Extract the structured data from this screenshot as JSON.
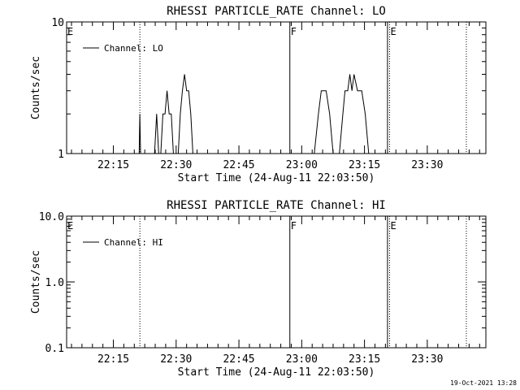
{
  "footer_timestamp": "19-Oct-2021 13:28",
  "chart_data": [
    {
      "type": "line",
      "title": "RHESSI PARTICLE_RATE Channel: LO",
      "xlabel": "Start Time (24-Aug-11 22:03:50)",
      "ylabel": "Counts/sec",
      "yscale": "log",
      "ylim": [
        1,
        10
      ],
      "ytick_labels": [
        "1",
        "10"
      ],
      "xlim": [
        "22:03:50",
        "23:44:00"
      ],
      "xtick_labels": [
        "22:15",
        "22:30",
        "22:45",
        "23:00",
        "23:15",
        "23:30"
      ],
      "legend": {
        "label": "Channel: LO",
        "placement": "top-left"
      },
      "grid": false,
      "markers": [
        {
          "label": "E",
          "time": "22:03:50",
          "style": "dotted"
        },
        {
          "label": "",
          "time": "22:21:20",
          "style": "dotted"
        },
        {
          "label": "F",
          "time": "22:57:10",
          "style": "solid"
        },
        {
          "label": "",
          "time": "23:20:30",
          "style": "solid"
        },
        {
          "label": "E",
          "time": "23:21:00",
          "style": "dotted"
        },
        {
          "label": "",
          "time": "23:39:20",
          "style": "dotted"
        }
      ],
      "series": [
        {
          "name": "Channel: LO",
          "points": [
            [
              "22:21:10",
              1
            ],
            [
              "22:21:20",
              2
            ],
            [
              "22:21:30",
              1
            ],
            [
              "22:24:50",
              1
            ],
            [
              "22:25:20",
              2
            ],
            [
              "22:25:50",
              1
            ],
            [
              "22:26:20",
              1
            ],
            [
              "22:26:50",
              2
            ],
            [
              "22:27:20",
              2
            ],
            [
              "22:27:50",
              3
            ],
            [
              "22:28:20",
              2
            ],
            [
              "22:28:50",
              2
            ],
            [
              "22:29:20",
              1
            ],
            [
              "22:30:30",
              1
            ],
            [
              "22:31:00",
              2
            ],
            [
              "22:31:30",
              3
            ],
            [
              "22:32:00",
              4
            ],
            [
              "22:32:30",
              3
            ],
            [
              "22:33:00",
              3
            ],
            [
              "22:33:30",
              2
            ],
            [
              "22:34:00",
              1
            ],
            [
              "23:03:00",
              1
            ],
            [
              "23:04:00",
              2
            ],
            [
              "23:04:40",
              3
            ],
            [
              "23:05:50",
              3
            ],
            [
              "23:06:40",
              2
            ],
            [
              "23:07:30",
              1
            ],
            [
              "23:09:00",
              1
            ],
            [
              "23:09:50",
              2
            ],
            [
              "23:10:20",
              3
            ],
            [
              "23:11:00",
              3
            ],
            [
              "23:11:30",
              4
            ],
            [
              "23:12:00",
              3
            ],
            [
              "23:12:30",
              4
            ],
            [
              "23:13:20",
              3
            ],
            [
              "23:14:20",
              3
            ],
            [
              "23:15:10",
              2
            ],
            [
              "23:16:00",
              1
            ]
          ]
        }
      ]
    },
    {
      "type": "line",
      "title": "RHESSI PARTICLE_RATE Channel: HI",
      "xlabel": "Start Time (24-Aug-11 22:03:50)",
      "ylabel": "Counts/sec",
      "yscale": "log",
      "ylim": [
        0.1,
        10
      ],
      "ytick_labels": [
        "0.1",
        "1.0",
        "10.0"
      ],
      "xlim": [
        "22:03:50",
        "23:44:00"
      ],
      "xtick_labels": [
        "22:15",
        "22:30",
        "22:45",
        "23:00",
        "23:15",
        "23:30"
      ],
      "legend": {
        "label": "Channel: HI",
        "placement": "top-left"
      },
      "grid": false,
      "markers": [
        {
          "label": "E",
          "time": "22:03:50",
          "style": "dotted"
        },
        {
          "label": "",
          "time": "22:21:20",
          "style": "dotted"
        },
        {
          "label": "F",
          "time": "22:57:10",
          "style": "solid"
        },
        {
          "label": "",
          "time": "23:20:30",
          "style": "solid"
        },
        {
          "label": "E",
          "time": "23:21:00",
          "style": "dotted"
        },
        {
          "label": "",
          "time": "23:39:20",
          "style": "dotted"
        }
      ],
      "series": [
        {
          "name": "Channel: HI",
          "points": []
        }
      ]
    }
  ]
}
